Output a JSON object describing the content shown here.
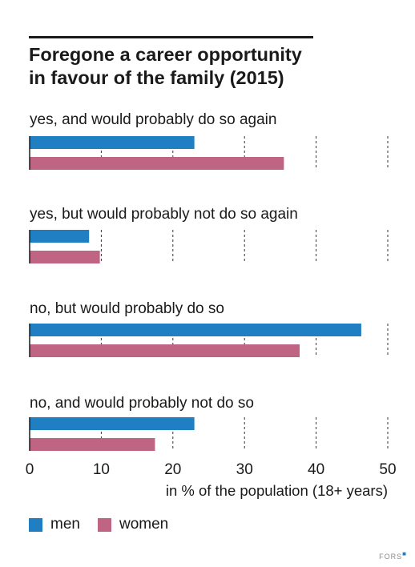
{
  "title_lines": [
    "Foregone a career opportunity",
    "in favour of the family (2015)"
  ],
  "logo_text": "FORS",
  "colors": {
    "men": "#1f7fc2",
    "women": "#bf6482",
    "text": "#1a1a1a"
  },
  "chart_data": {
    "type": "bar",
    "orientation": "horizontal",
    "title": "Foregone a career opportunity in favour of the family (2015)",
    "categories": [
      "yes, and would probably do so again",
      "yes, but would probably not do so again",
      "no, but would probably do so",
      "no, and would probably not do so"
    ],
    "series": [
      {
        "name": "men",
        "color": "#1f7fc2",
        "values": [
          23,
          8.3,
          46.3,
          23
        ]
      },
      {
        "name": "women",
        "color": "#bf6482",
        "values": [
          35.5,
          9.8,
          37.7,
          17.5
        ]
      }
    ],
    "xlabel": "in % of the population (18+ years)",
    "xlim": [
      0,
      50
    ],
    "xticks": [
      "0",
      "10",
      "20",
      "30",
      "40",
      "50"
    ],
    "grid": "dashed vertical lines at 10, 20, 30, 40, 50",
    "legend": "bottom-left"
  }
}
